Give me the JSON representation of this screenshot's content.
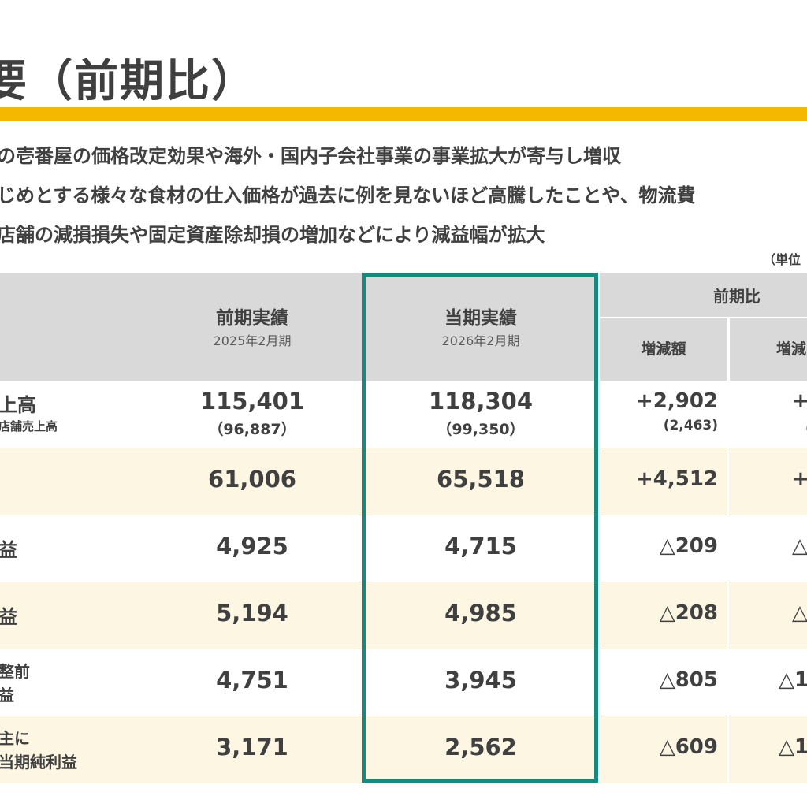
{
  "title": "要（前期比）",
  "bullets": [
    "の壱番屋の価格改定効果や海外・国内子会社事業の事業拡大が寄与し増収",
    "じめとする様々な食材の仕入価格が過去に例を見ないほど高騰したことや、物流費",
    "店舗の減損損失や固定資産除却損の増加などにより減益幅が拡大"
  ],
  "unit": "（単位",
  "header": {
    "prev_label": "前期実績",
    "prev_period": "2025年2月期",
    "curr_label": "当期実績",
    "curr_period": "2026年2月期",
    "yoy_label": "前期比",
    "diff_label": "増減額",
    "rate_label": "増減"
  },
  "rows": [
    {
      "label": "上高",
      "sublabel": "店舗売上高",
      "prev": "115,401",
      "prev_sub": "（96,887）",
      "curr": "118,304",
      "curr_sub": "（99,350）",
      "diff": "+2,902",
      "diff_sub": "(2,463)",
      "rate": "+",
      "rate_sub": "（"
    },
    {
      "label": "",
      "prev": "61,006",
      "curr": "65,518",
      "diff": "+4,512",
      "rate": "+"
    },
    {
      "label": "益",
      "prev": "4,925",
      "curr": "4,715",
      "diff": "△209",
      "rate": "△"
    },
    {
      "label": "益",
      "prev": "5,194",
      "curr": "4,985",
      "diff": "△208",
      "rate": "△"
    },
    {
      "label": "整前",
      "label2": "益",
      "prev": "4,751",
      "curr": "3,945",
      "diff": "△805",
      "rate": "△1"
    },
    {
      "label": "主に",
      "label2": "当期純利益",
      "prev": "3,171",
      "curr": "2,562",
      "diff": "△609",
      "rate": "△1"
    }
  ]
}
